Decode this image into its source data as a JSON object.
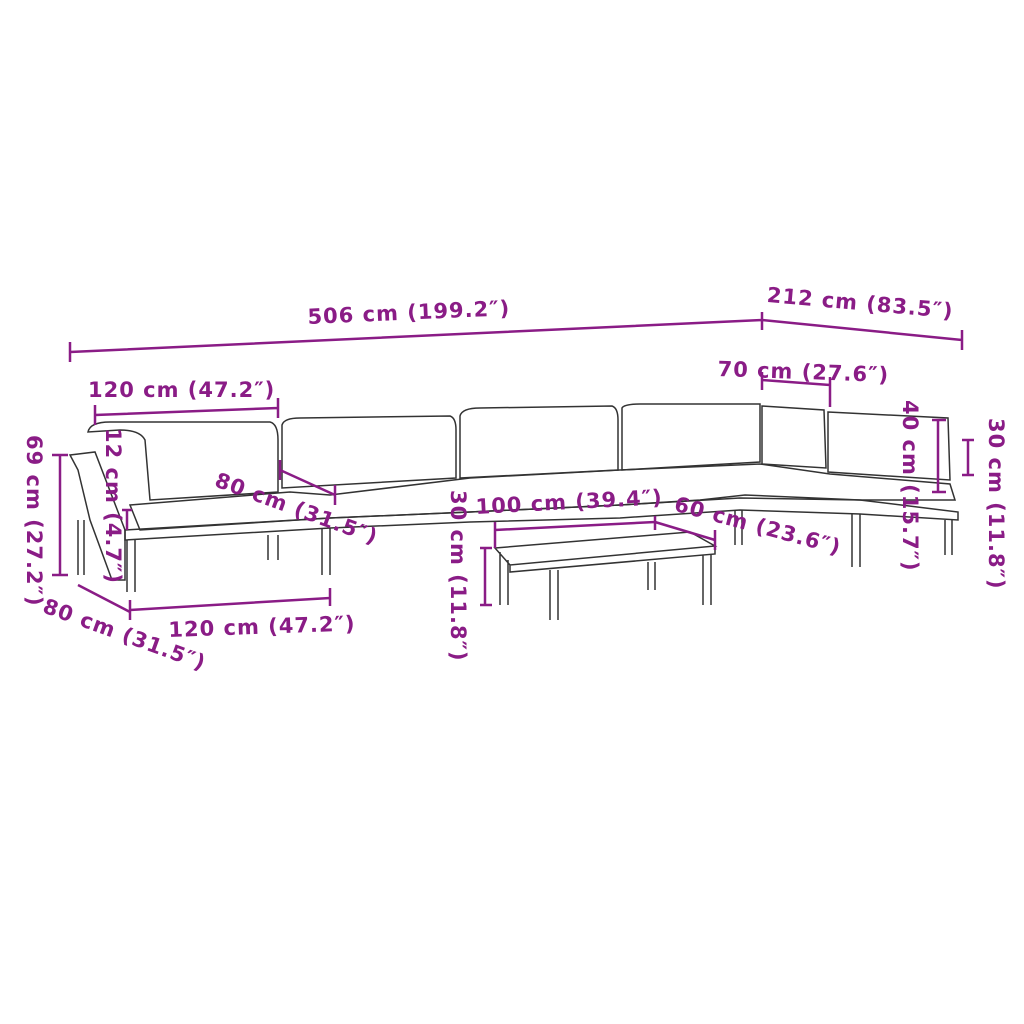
{
  "accent_color": "#8a1c86",
  "line_color": "#333333",
  "dimensions": {
    "total_length": "506 cm (199.2″)",
    "corner_depth": "212 cm (83.5″)",
    "sofa_width_top": "120 cm (47.2″)",
    "corner_seat_width": "70 cm (27.6″)",
    "total_height": "69 cm (27.2″)",
    "armrest_height": "12 cm (4.7″)",
    "seat_depth_top": "80 cm (31.5″)",
    "table_length": "100 cm (39.4″)",
    "table_height": "30 cm (11.8″)",
    "table_depth": "60 cm (23.6″)",
    "backrest_height": "40 cm (15.7″)",
    "seat_height": "30 cm (11.8″)",
    "seat_depth_bottom": "80 cm (31.5″)",
    "sofa_width_bottom": "120 cm (47.2″)"
  }
}
